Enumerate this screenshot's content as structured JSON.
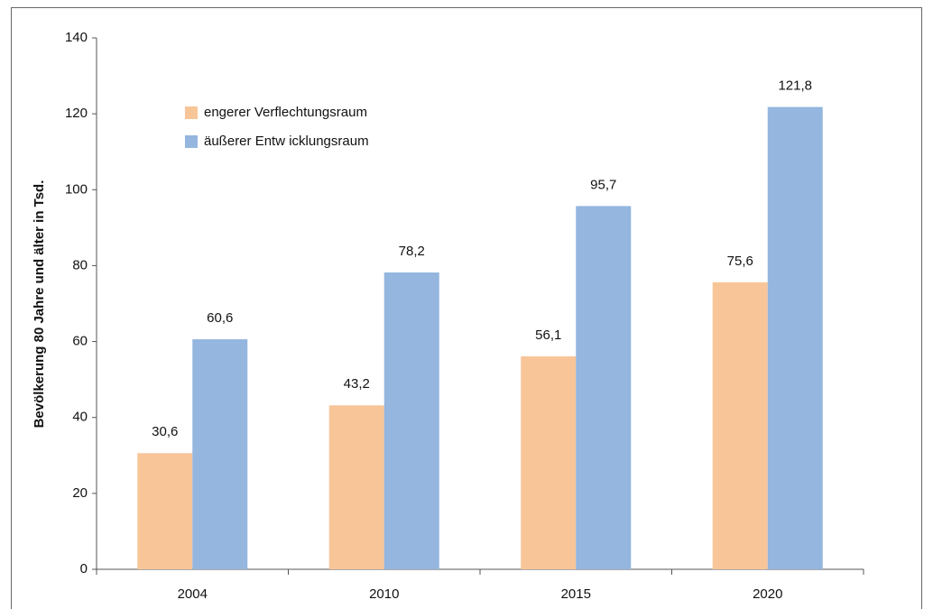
{
  "chart_data": {
    "type": "bar",
    "y_label": "Bevölkerung 80 Jahre und älter in Tsd.",
    "categories": [
      "2004",
      "2010",
      "2015",
      "2020"
    ],
    "series": [
      {
        "name": "engerer Verflechtungsraum",
        "color": "#f8c598",
        "values": [
          30.6,
          43.2,
          56.1,
          75.6
        ],
        "value_labels": [
          "30,6",
          "43,2",
          "56,1",
          "75,6"
        ]
      },
      {
        "name": "äußerer Entw icklungsraum",
        "color": "#94b6df",
        "values": [
          60.6,
          78.2,
          95.7,
          121.8
        ],
        "value_labels": [
          "60,6",
          "78,2",
          "95,7",
          "121,8"
        ]
      }
    ],
    "ylim": [
      0,
      140
    ],
    "yticks": [
      0,
      20,
      40,
      60,
      80,
      100,
      120,
      140
    ],
    "grid": false,
    "legend": "upper left"
  }
}
